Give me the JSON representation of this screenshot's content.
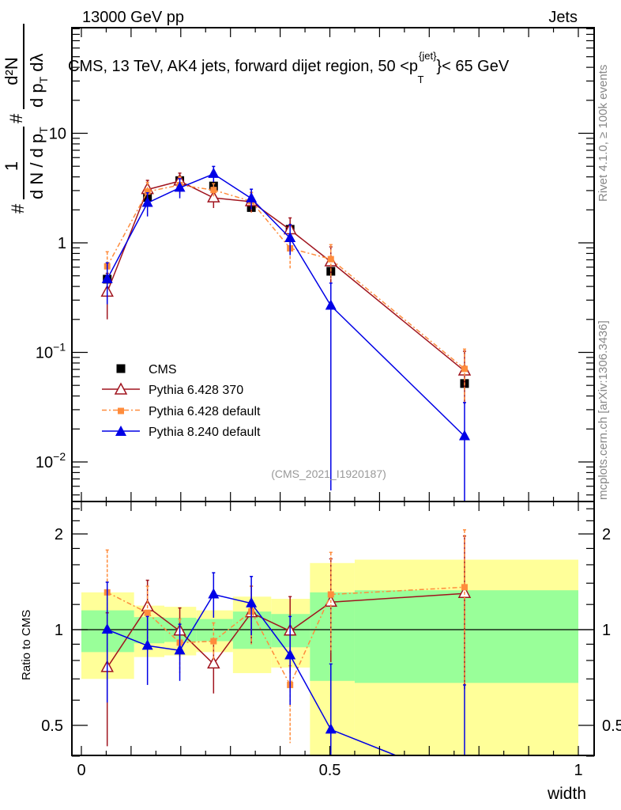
{
  "header": {
    "left": "13000 GeV pp",
    "right": "Jets"
  },
  "side_labels": {
    "rivet": "Rivet 4.1.0, ≥ 100k events",
    "mcplots": "mcplots.cern.ch [arXiv:1306.3436]"
  },
  "chart_data": [
    {
      "type": "line",
      "panel": "main",
      "title": "CMS, 13 TeV, AK4 jets, forward dijet region, 50 <p",
      "title_sup": "{jet}",
      "title_sub": "T",
      "title_tail": "}< 65 GeV",
      "ylabel_parts": {
        "hash1": "#",
        "num1": "1",
        "den1": "d N / d p",
        "den1_sub": "T",
        "hash2": "#",
        "num2": "d²N",
        "den2": "d p",
        "den2_sub": "T",
        "den2_tail": " dλ"
      },
      "yscale": "log",
      "ylim": [
        0.0043,
        91
      ],
      "yticks": [
        {
          "v": 0.01,
          "base": "10",
          "exp": "−2"
        },
        {
          "v": 0.1,
          "base": "10",
          "exp": "−1"
        },
        {
          "v": 1,
          "base": "1",
          "exp": ""
        },
        {
          "v": 10,
          "base": "10",
          "exp": ""
        }
      ],
      "watermark": "(CMS_2021_I1920187)",
      "x": [
        0.052,
        0.133,
        0.198,
        0.266,
        0.342,
        0.42,
        0.502,
        0.771
      ],
      "reference": {
        "name": "CMS",
        "values": [
          0.466,
          2.6,
          3.7,
          3.3,
          2.1,
          1.33,
          0.55,
          0.052
        ],
        "color": "#000000"
      },
      "legend": [
        "CMS",
        "Pythia 6.428 370",
        "Pythia 6.428 default",
        "Pythia 8.240 default"
      ],
      "legend_placement": "lower-left"
    },
    {
      "type": "line",
      "panel": "ratio",
      "ylabel": "Ratio to CMS",
      "xlabel": "width",
      "yscale": "log",
      "ylim": [
        0.4,
        2.53
      ],
      "xlim": [
        -0.019,
        1.03
      ],
      "xticks": [
        {
          "v": 0,
          "label": "0"
        },
        {
          "v": 0.5,
          "label": "0.5"
        },
        {
          "v": 1,
          "label": "1"
        }
      ],
      "yticks": [
        {
          "v": 0.5,
          "label": "0.5"
        },
        {
          "v": 1,
          "label": "1"
        },
        {
          "v": 2,
          "label": "2"
        }
      ],
      "band_edges": [
        0,
        0.106,
        0.167,
        0.231,
        0.305,
        0.382,
        0.46,
        0.55,
        1.0
      ],
      "band_stat": {
        "color": "#99ff99",
        "lo": [
          0.85,
          0.906,
          0.915,
          0.92,
          0.87,
          0.88,
          0.69,
          0.68
        ],
        "hi": [
          1.15,
          1.095,
          1.09,
          1.08,
          1.14,
          1.12,
          1.31,
          1.33
        ]
      },
      "band_total": {
        "color": "#ffff99",
        "lo": [
          0.7,
          0.82,
          0.83,
          0.85,
          0.73,
          0.76,
          0.3,
          0.3
        ],
        "hi": [
          1.31,
          1.19,
          1.18,
          1.15,
          1.27,
          1.25,
          1.62,
          1.66
        ]
      },
      "series": [
        {
          "name": "Pythia 6.428 370",
          "color": "#a0141e",
          "marker": "open-triangle",
          "dash": "",
          "ratio": [
            0.76,
            1.18,
            0.99,
            0.78,
            1.13,
            0.99,
            1.22,
            1.3
          ],
          "err_lo": [
            0.43,
            0.93,
            0.82,
            0.63,
            0.9,
            0.73,
            0.79,
            0.65
          ],
          "err_hi": [
            1.13,
            1.43,
            1.17,
            0.92,
            1.37,
            1.27,
            1.67,
            1.97
          ]
        },
        {
          "name": "Pythia 6.428 default",
          "color": "#ff8c3c",
          "marker": "square",
          "dash": "6,3,2,3",
          "ratio": [
            1.31,
            1.13,
            0.91,
            0.92,
            1.14,
            0.67,
            1.29,
            1.36
          ],
          "err_lo": [
            0.85,
            0.93,
            0.73,
            0.8,
            0.9,
            0.44,
            0.85,
            0.68
          ],
          "err_hi": [
            1.78,
            1.37,
            1.08,
            1.05,
            1.37,
            0.77,
            1.75,
            2.06
          ]
        },
        {
          "name": "Pythia 8.240 default",
          "color": "#0000e6",
          "marker": "filled-triangle",
          "dash": "",
          "ratio": [
            1.0,
            0.89,
            0.86,
            1.29,
            1.21,
            0.83,
            0.485,
            0.33
          ],
          "err_lo": [
            0.59,
            0.67,
            0.69,
            1.09,
            0.96,
            0.58,
            0.01,
            0.01
          ],
          "err_hi": [
            1.41,
            1.1,
            1.04,
            1.51,
            1.47,
            1.1,
            0.78,
            0.67
          ]
        }
      ]
    }
  ]
}
